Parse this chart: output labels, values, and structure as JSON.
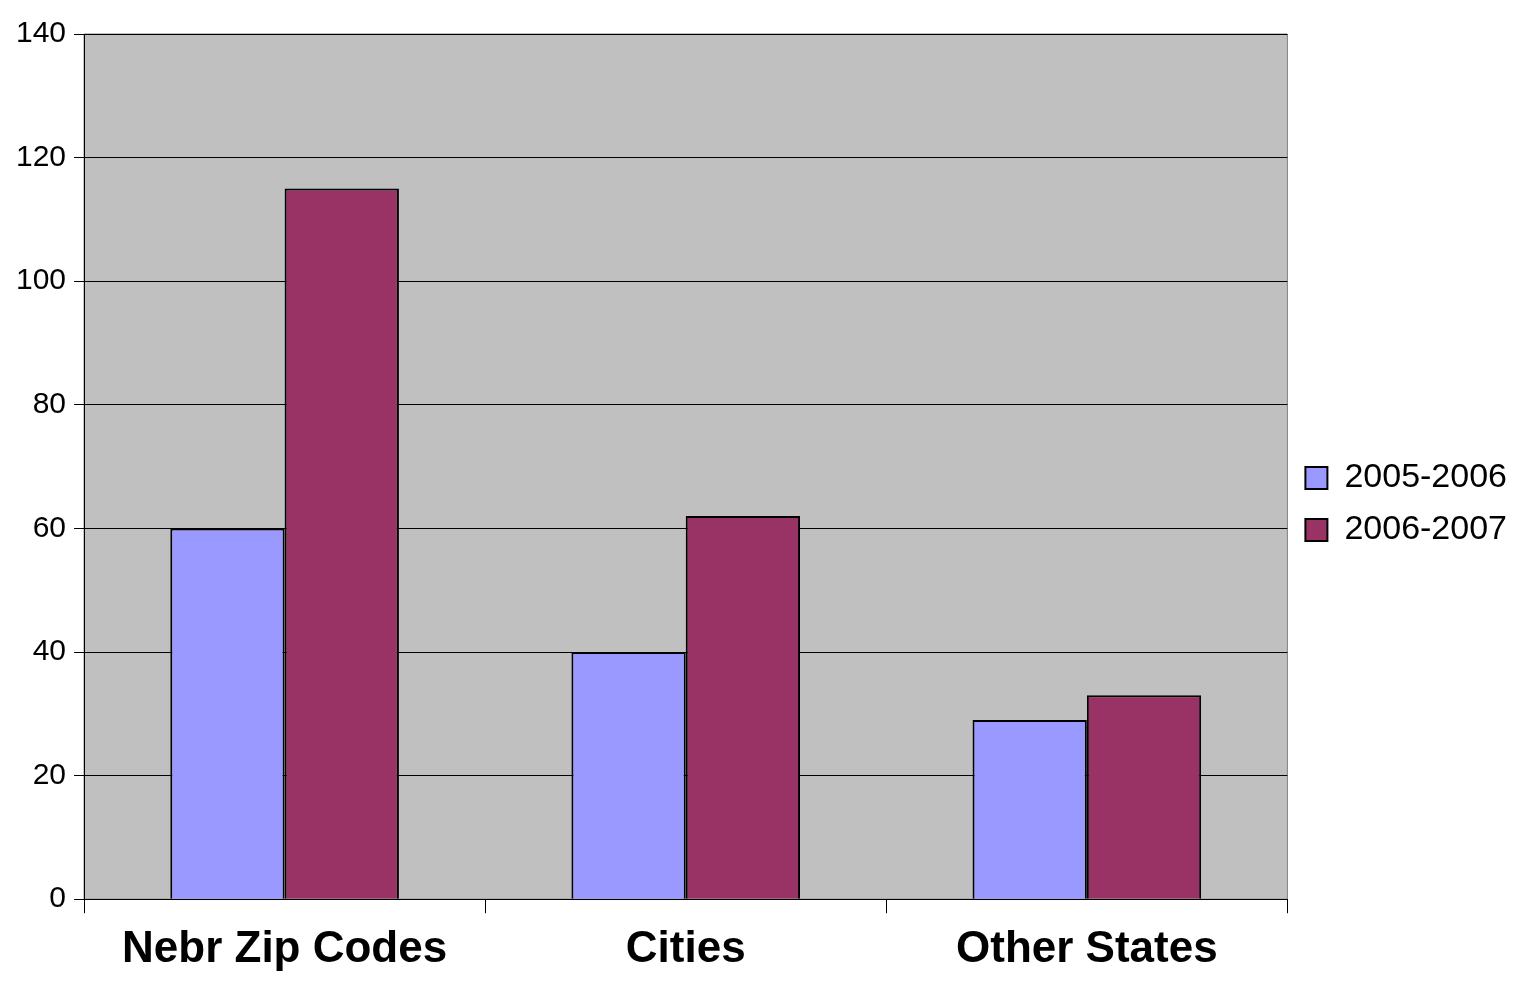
{
  "chart_data": {
    "type": "bar",
    "categories": [
      "Nebr Zip Codes",
      "Cities",
      "Other States"
    ],
    "series": [
      {
        "name": "2005-2006",
        "color": "#9999ff",
        "values": [
          60,
          40,
          29
        ]
      },
      {
        "name": "2006-2007",
        "color": "#993366",
        "values": [
          115,
          62,
          33
        ]
      }
    ],
    "ylim": [
      0,
      140
    ],
    "yticks": [
      0,
      20,
      40,
      60,
      80,
      100,
      120,
      140
    ],
    "grid": "y",
    "legend": "right"
  }
}
